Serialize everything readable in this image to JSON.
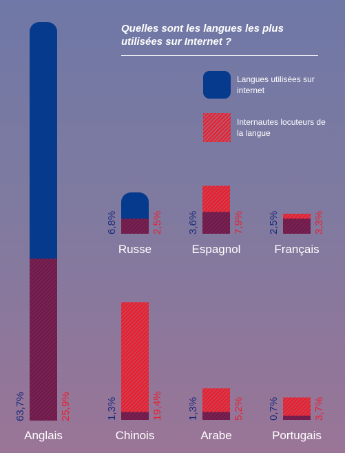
{
  "title": "Quelles sont les langues les plus utilisées sur Internet ?",
  "legend": {
    "internet_label": "Langues utilisées sur internet",
    "speakers_label": "Internautes locuteurs de la langue"
  },
  "colors": {
    "internet": "#063a8c",
    "speakers": "#e8202f",
    "overlap": "#7b2050",
    "internet_text": "#1a2a7a",
    "speakers_text": "#e8202f"
  },
  "chart_data": {
    "type": "bar",
    "categories": [
      "Anglais",
      "Russe",
      "Espagnol",
      "Français",
      "Chinois",
      "Arabe",
      "Portugais"
    ],
    "series": [
      {
        "name": "Langues utilisées sur internet",
        "values": [
          63.7,
          6.8,
          3.6,
          2.5,
          1.3,
          1.3,
          0.7
        ],
        "labels": [
          "63,7%",
          "6,8%",
          "3,6%",
          "2,5%",
          "1,3%",
          "1,3%",
          "0,7%"
        ]
      },
      {
        "name": "Internautes locuteurs de la langue",
        "values": [
          25.9,
          2.5,
          7.9,
          3.3,
          19.4,
          5.2,
          3.7
        ],
        "labels": [
          "25,9%",
          "2,5%",
          "7,9%",
          "3,3%",
          "19,4%",
          "5,2%",
          "3,7%"
        ]
      }
    ]
  }
}
